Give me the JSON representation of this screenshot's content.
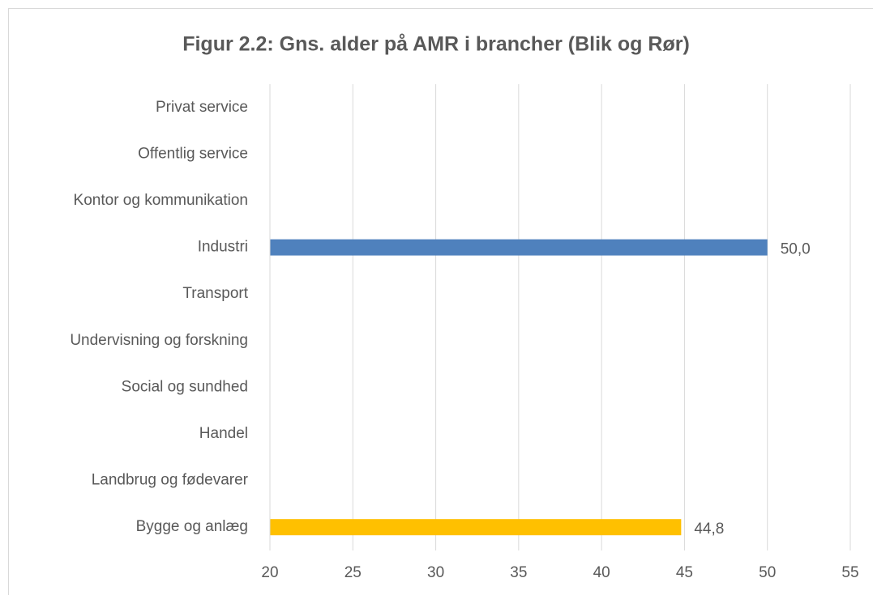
{
  "chart_data": {
    "type": "hbar",
    "title": "Figur 2.2: Gns. alder på AMR i brancher (Blik og Rør)",
    "categories": [
      "Privat service",
      "Offentlig service",
      "Kontor og kommunikation",
      "Industri",
      "Transport",
      "Undervisning og forskning",
      "Social og sundhed",
      "Handel",
      "Landbrug og fødevarer",
      "Bygge og anlæg"
    ],
    "values": [
      null,
      null,
      null,
      50.0,
      null,
      null,
      null,
      null,
      null,
      44.8
    ],
    "value_labels": [
      null,
      null,
      null,
      "50,0",
      null,
      null,
      null,
      null,
      null,
      "44,8"
    ],
    "colors": [
      null,
      null,
      null,
      "#4f81bd",
      null,
      null,
      null,
      null,
      null,
      "#ffc000"
    ],
    "xlim": [
      20,
      55
    ],
    "xticks": [
      20,
      25,
      30,
      35,
      40,
      45,
      50,
      55
    ],
    "grid": true
  }
}
